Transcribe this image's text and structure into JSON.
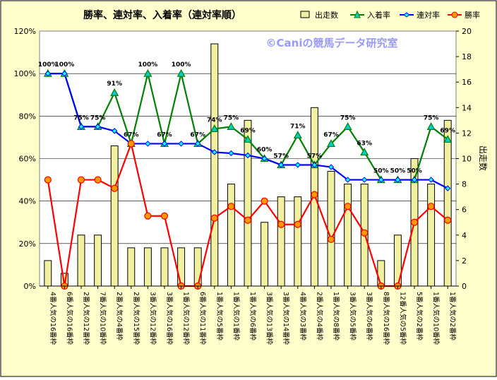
{
  "chart_data": {
    "type": "bar+line",
    "title": "勝率、連対率、入着率（連対率順）",
    "watermark": "©Caniの競馬データ研究室",
    "y2label": "出走数",
    "ylim": [
      0,
      120
    ],
    "y2lim": [
      0,
      20
    ],
    "yticks": [
      "0%",
      "20%",
      "40%",
      "60%",
      "80%",
      "100%",
      "120%"
    ],
    "y2ticks": [
      "0",
      "2",
      "4",
      "6",
      "8",
      "10",
      "12",
      "14",
      "16",
      "18",
      "20"
    ],
    "grid": true,
    "legend_position": "top-right",
    "categories": [
      "4番人気の16番枠",
      "6番人気の16番枠",
      "2番人気の12番枠",
      "7番人気の10番枠",
      "2番人気の4番枠",
      "2番人気の15番枠",
      "3番人気の12番枠",
      "3番人気の16番枠",
      "1番人気の12番枠",
      "6番人気の11番枠",
      "1番人気の5番枠",
      "1番人気の1番枠",
      "1番人気の6番枠",
      "3番人気の13番枠",
      "3番人気の14番枠",
      "4番人気の3番枠",
      "2番人気の4番枠",
      "1番人気の8番枠",
      "3番人気の5番枠",
      "3番人気の6番枠",
      "8番人気の16番枠",
      "12番人気の5番枠",
      "5番人気の2番枠",
      "1番人気の10番枠",
      "1番人気の2番枠"
    ],
    "series": [
      {
        "name": "出走数",
        "kind": "bar",
        "axis": "right",
        "color": "#f0f0a0",
        "values": [
          2,
          1,
          4,
          4,
          11,
          3,
          3,
          3,
          3,
          3,
          19,
          8,
          13,
          5,
          7,
          7,
          14,
          9,
          8,
          8,
          2,
          4,
          10,
          8,
          13
        ]
      },
      {
        "name": "入着率",
        "kind": "line",
        "axis": "left",
        "color": "#008000",
        "marker": "triangle",
        "values": [
          100,
          100,
          75,
          75,
          91,
          67,
          100,
          67,
          100,
          67,
          74,
          75,
          69,
          60,
          57,
          71,
          57,
          67,
          75,
          63,
          50,
          50,
          50,
          75,
          69
        ]
      },
      {
        "name": "連対率",
        "kind": "line",
        "axis": "left",
        "color": "#0000ff",
        "marker": "diamond",
        "values": [
          100,
          100,
          75,
          75,
          73,
          67,
          67,
          67,
          67,
          67,
          63,
          62.5,
          61.5,
          60,
          57,
          57,
          57,
          56,
          50,
          50,
          50,
          50,
          50,
          50,
          46
        ]
      },
      {
        "name": "勝率",
        "kind": "line",
        "axis": "left",
        "color": "#ff0000",
        "marker": "circle",
        "values": [
          50,
          0,
          50,
          50,
          46,
          67,
          33,
          33,
          0,
          0,
          32,
          37.5,
          31,
          40,
          29,
          29,
          43,
          22,
          37.5,
          25,
          0,
          0,
          30,
          37.5,
          31
        ]
      }
    ],
    "data_labels": {
      "series": "入着率",
      "values": [
        "100%",
        "100%",
        "75%",
        "75%",
        "91%",
        "67%",
        "100%",
        "67%",
        "100%",
        "67%",
        "74%",
        "75%",
        "69%",
        "60%",
        "57%",
        "71%",
        "57%",
        "67%",
        "75%",
        "63%",
        "50%",
        "50%",
        "50%",
        "75%",
        "69%"
      ]
    }
  }
}
